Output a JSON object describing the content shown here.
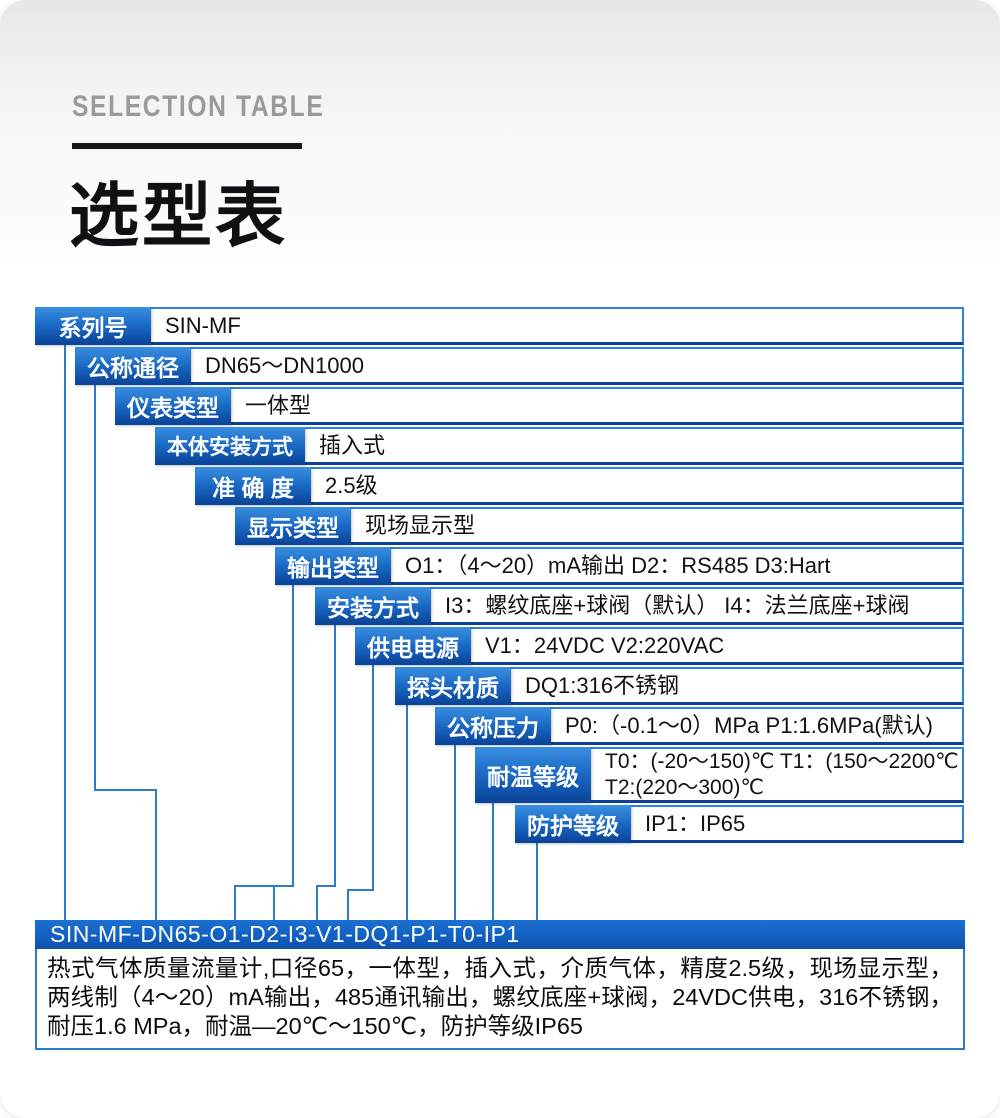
{
  "header": {
    "eyebrow": "SELECTION TABLE",
    "title": "选型表"
  },
  "table": {
    "rows": [
      {
        "label": "系列号",
        "value": "SIN-MF"
      },
      {
        "label": "公称通径",
        "value": "DN65～DN1000"
      },
      {
        "label": "仪表类型",
        "value": "一体型"
      },
      {
        "label": "本体安装方式",
        "value": "插入式"
      },
      {
        "label": "准 确 度",
        "value": "2.5级"
      },
      {
        "label": "显示类型",
        "value": "现场显示型"
      },
      {
        "label": "输出类型",
        "value": "O1：（4～20）mA输出 D2：RS485 D3:Hart"
      },
      {
        "label": "安装方式",
        "value": "I3：螺纹底座+球阀（默认） I4：法兰底座+球阀"
      },
      {
        "label": "供电电源",
        "value": "V1：24VDC V2:220VAC"
      },
      {
        "label": "探头材质",
        "value": "DQ1:316不锈钢"
      },
      {
        "label": "公称压力",
        "value": "P0:（-0.1～0）MPa P1:1.6MPa(默认)"
      },
      {
        "label": "耐温等级",
        "value": "T0：(-20～150)℃ T1：(150～2200℃\nT2:(220～300)℃"
      },
      {
        "label": "防护等级",
        "value": "IP1：IP65"
      }
    ]
  },
  "model_code": "SIN-MF-DN65-O1-D2-I3-V1-DQ1-P1-T0-IP1",
  "description": "热式气体质量流量计,口径65，一体型，插入式，介质气体，精度2.5级，现场显示型，两线制（4～20）mA输出，485通讯输出，螺纹底座+球阀，24VDC供电，316不锈钢，耐压1.6 MPa，耐温—20℃～150℃，防护等级IP65",
  "colors": {
    "label_box_top": "#3a8fe0",
    "label_box_bottom": "#0a4296",
    "row_border_light": "#2a85d8",
    "row_border_dark": "#0c3f96",
    "connector_line": "#2b7cc4",
    "code_bar": "#1261c2",
    "eyebrow_gray": "#9a9a9a",
    "title_black": "#101014"
  }
}
